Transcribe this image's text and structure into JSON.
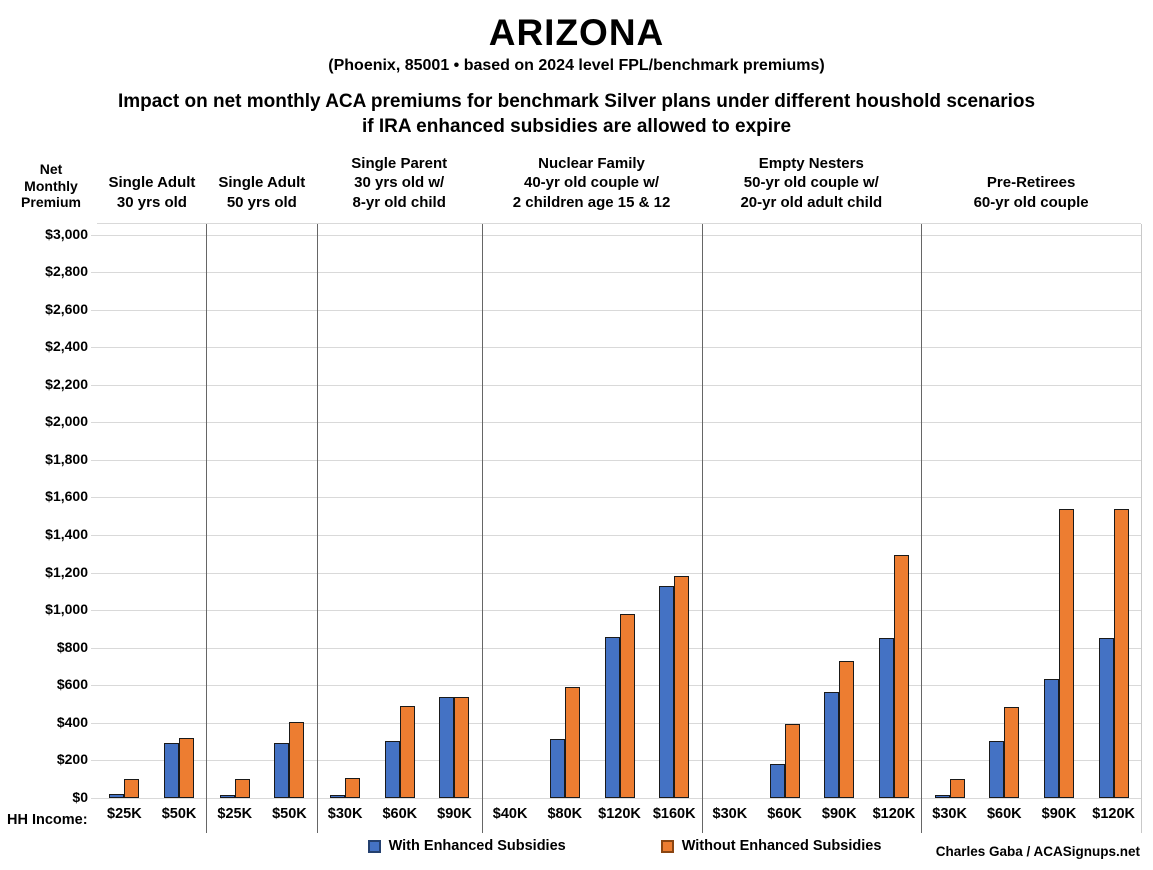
{
  "chart_data": {
    "type": "bar",
    "title": "ARIZONA",
    "subtitle": "(Phoenix, 85001 • based on 2024 level FPL/benchmark premiums)",
    "heading_line1": "Impact on net monthly ACA premiums for benchmark Silver plans under different houshold scenarios",
    "heading_line2": "if IRA enhanced subsidies are allowed to expire",
    "y_axis": {
      "label": "Net\nMonthly\nPremium",
      "min": 0,
      "max": 3000,
      "step": 200,
      "tick_prefix": "$",
      "gridlines": true
    },
    "x_axis_label": "HH Income:",
    "legend_position": "bottom",
    "series": [
      {
        "name": "With Enhanced Subsidies",
        "color": "#4472C4",
        "border": "#24406f"
      },
      {
        "name": "Without Enhanced Subsidies",
        "color": "#ED7D31",
        "border": "#8a4512"
      }
    ],
    "groups": [
      {
        "label_lines": [
          "Single Adult",
          "30 yrs old"
        ],
        "categories": [
          "$25K",
          "$50K"
        ],
        "with_enhanced": [
          20,
          295
        ],
        "without_enhanced": [
          100,
          320
        ]
      },
      {
        "label_lines": [
          "Single Adult",
          "50 yrs old"
        ],
        "categories": [
          "$25K",
          "$50K"
        ],
        "with_enhanced": [
          15,
          295
        ],
        "without_enhanced": [
          100,
          405
        ]
      },
      {
        "label_lines": [
          "Single Parent",
          "30 yrs old w/",
          "8-yr old child"
        ],
        "categories": [
          "$30K",
          "$60K",
          "$90K"
        ],
        "with_enhanced": [
          5,
          305,
          540
        ],
        "without_enhanced": [
          105,
          490,
          540
        ]
      },
      {
        "label_lines": [
          "Nuclear Family",
          "40-yr old couple w/",
          "2 children age 15 & 12"
        ],
        "categories": [
          "$40K",
          "$80K",
          "$120K",
          "$160K"
        ],
        "with_enhanced": [
          0,
          315,
          855,
          1130
        ],
        "without_enhanced": [
          0,
          590,
          980,
          1180
        ]
      },
      {
        "label_lines": [
          "Empty Nesters",
          "50-yr old couple w/",
          "20-yr old adult child"
        ],
        "categories": [
          "$30K",
          "$60K",
          "$90K",
          "$120K"
        ],
        "with_enhanced": [
          0,
          180,
          565,
          850
        ],
        "without_enhanced": [
          0,
          395,
          730,
          1295
        ]
      },
      {
        "label_lines": [
          "Pre-Retirees",
          "60-yr old couple"
        ],
        "categories": [
          "$30K",
          "$60K",
          "$90K",
          "$120K"
        ],
        "with_enhanced": [
          5,
          305,
          635,
          850
        ],
        "without_enhanced": [
          100,
          485,
          1540,
          1540
        ]
      }
    ],
    "credit": "Charles Gaba / ACASignups.net",
    "colors": {
      "bar_outline": "#1a1a1a",
      "gridline": "#d9d9d9",
      "panel_separator": "#666666"
    }
  }
}
